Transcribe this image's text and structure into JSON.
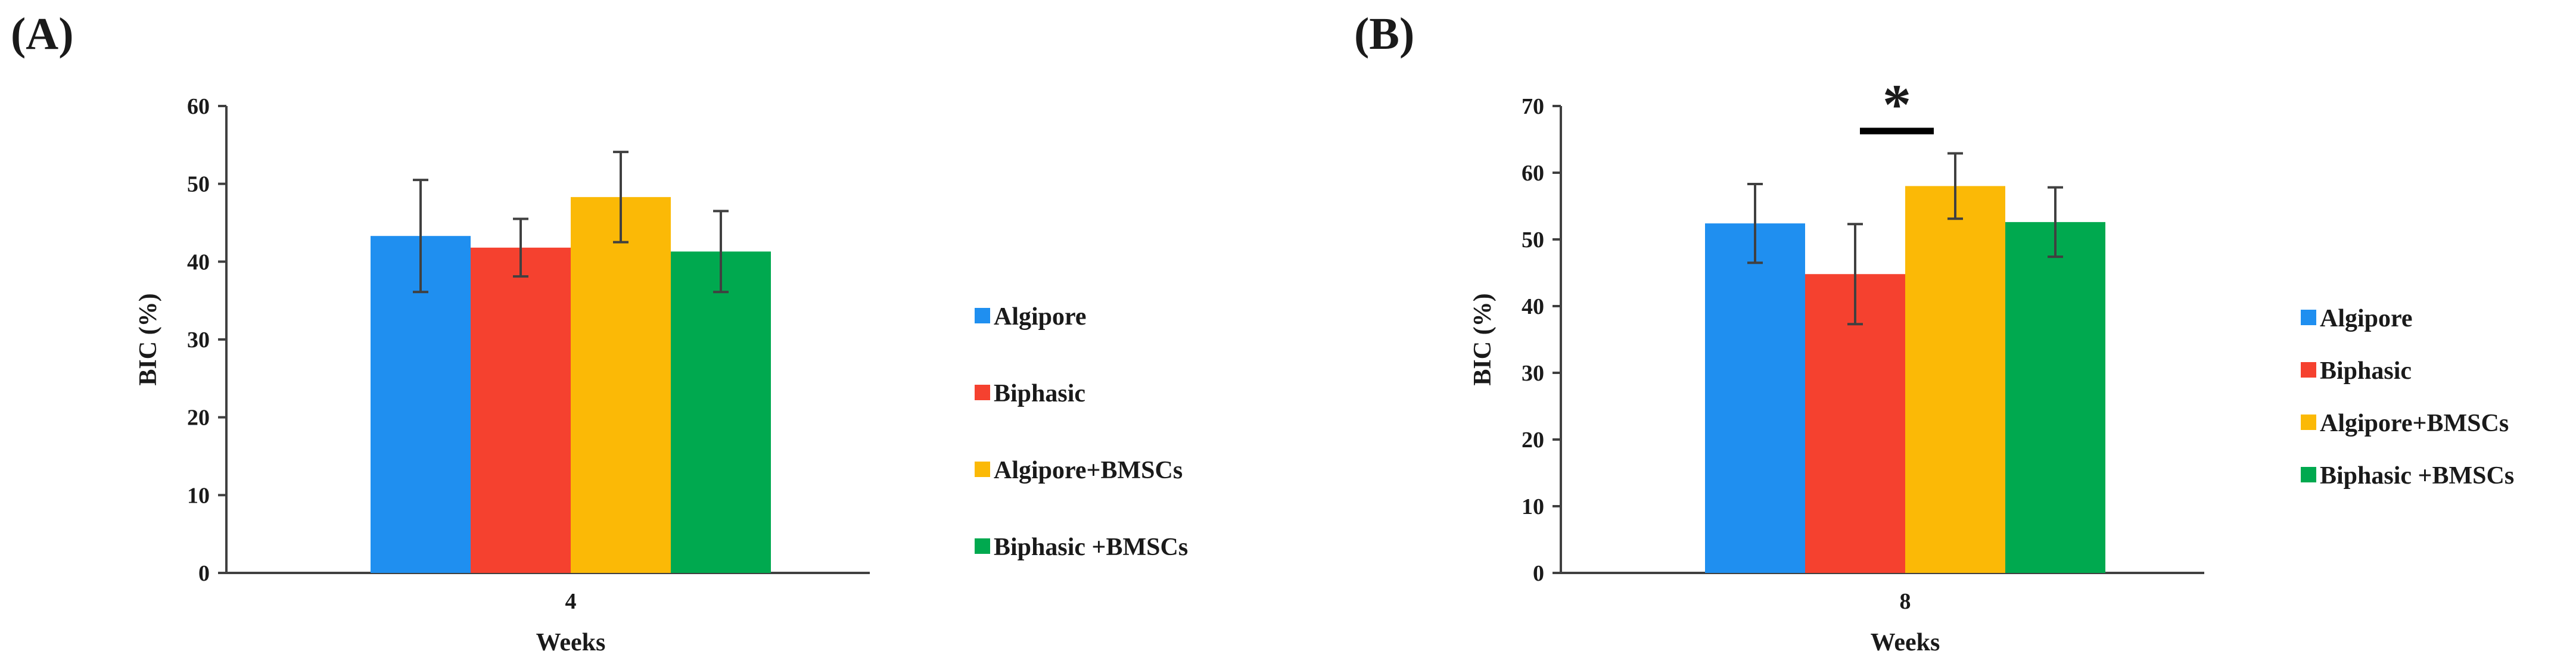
{
  "colors": {
    "Algipore": "#1f8ff0",
    "Biphasic": "#f5412f",
    "Algipore+BMSCs": "#fbb906",
    "Biphasic +BMSCs": "#00a94f",
    "axis": "#404040",
    "error_bar": "#404040"
  },
  "chart_data": [
    {
      "type": "bar",
      "panel_label": "(A)",
      "categories": [
        "4"
      ],
      "series": [
        {
          "name": "Algipore",
          "values": [
            43.3
          ],
          "error": [
            7.2
          ]
        },
        {
          "name": "Biphasic",
          "values": [
            41.8
          ],
          "error": [
            3.7
          ]
        },
        {
          "name": "Algipore+BMSCs",
          "values": [
            48.3
          ],
          "error": [
            5.8
          ]
        },
        {
          "name": "Biphasic +BMSCs",
          "values": [
            41.3
          ],
          "error": [
            5.2
          ]
        }
      ],
      "xlabel": "Weeks",
      "ylabel": "BIC (%)",
      "ylim": [
        0,
        60
      ],
      "yticks": [
        0,
        10,
        20,
        30,
        40,
        50,
        60
      ],
      "grid": false,
      "legend_position": "right",
      "annotations": []
    },
    {
      "type": "bar",
      "panel_label": "(B)",
      "categories": [
        "8"
      ],
      "series": [
        {
          "name": "Algipore",
          "values": [
            52.4
          ],
          "error": [
            5.9
          ]
        },
        {
          "name": "Biphasic",
          "values": [
            44.8
          ],
          "error": [
            7.5
          ]
        },
        {
          "name": "Algipore+BMSCs",
          "values": [
            58.0
          ],
          "error": [
            4.9
          ]
        },
        {
          "name": "Biphasic +BMSCs",
          "values": [
            52.6
          ],
          "error": [
            5.2
          ]
        }
      ],
      "xlabel": "Weeks",
      "ylabel": "BIC (%)",
      "ylim": [
        0,
        70
      ],
      "yticks": [
        0,
        10,
        20,
        30,
        40,
        50,
        60,
        70
      ],
      "grid": false,
      "legend_position": "right",
      "annotations": [
        {
          "text": "*",
          "between": [
            "Biphasic",
            "Algipore+BMSCs"
          ]
        }
      ]
    }
  ]
}
